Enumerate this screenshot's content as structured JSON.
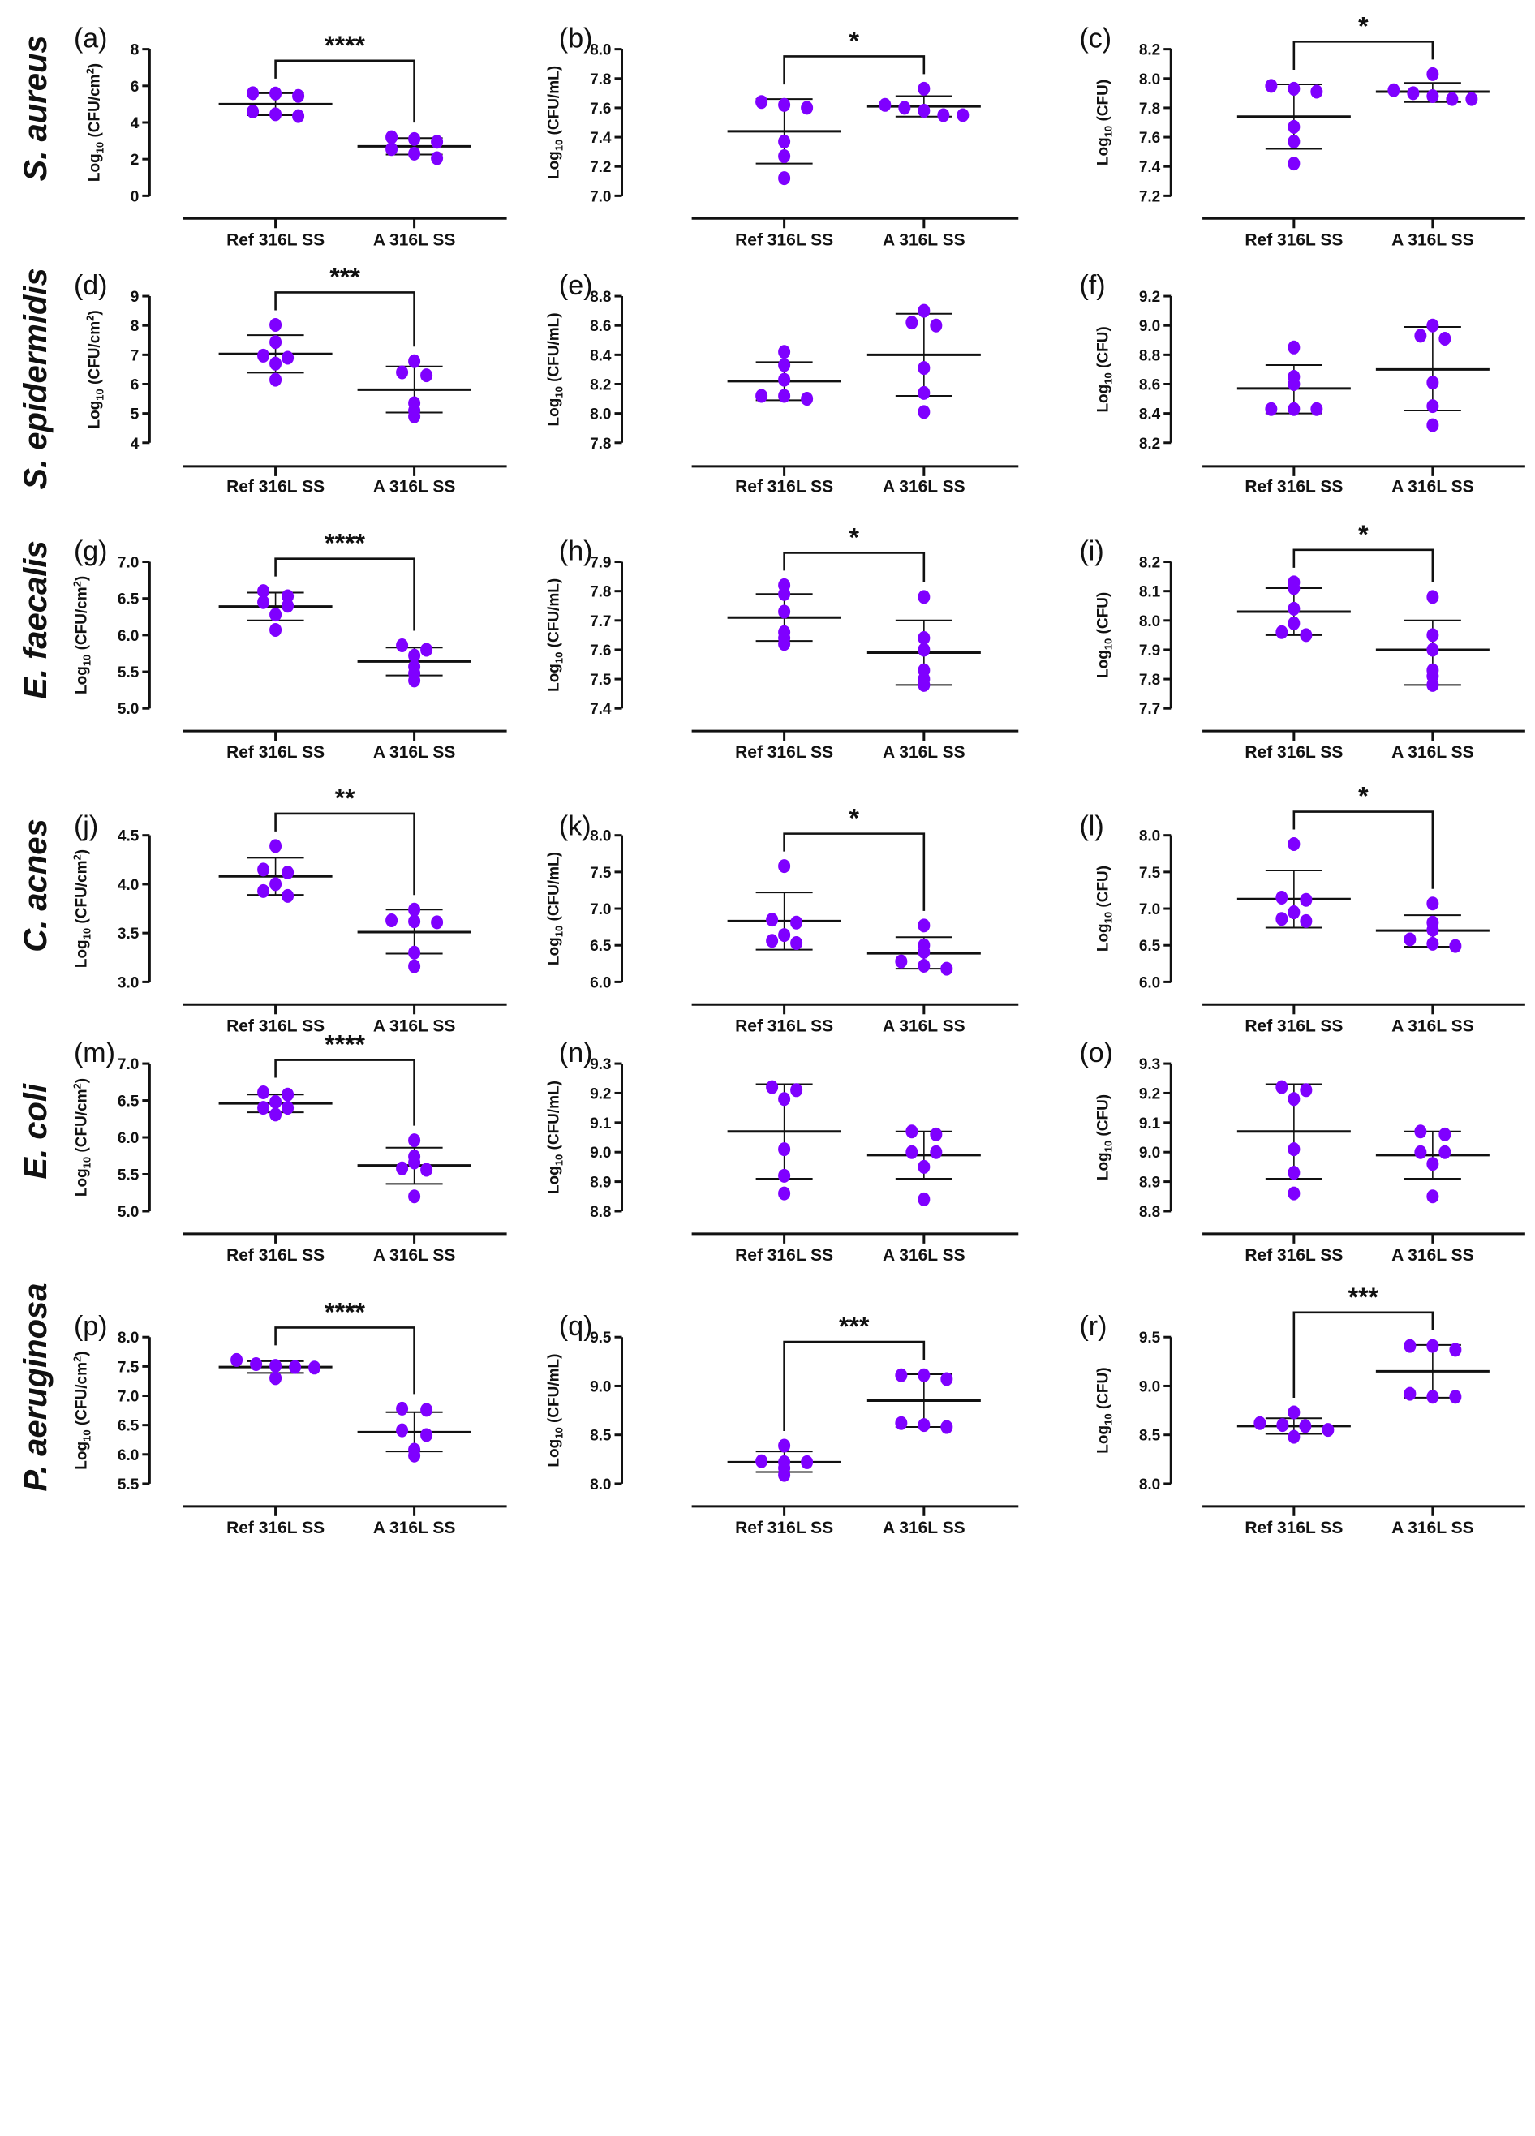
{
  "figure": {
    "dot_color": "#7f00ff",
    "line_color": "#111111",
    "categories": [
      "Ref 316L SS",
      "A 316L SS"
    ]
  },
  "row_labels": [
    "S. aureus",
    "S. epidermidis",
    "E. faecalis",
    "C. acnes",
    "E. coli",
    "P. aeruginosa"
  ],
  "chart_data": [
    {
      "panel": "(a)",
      "type": "scatter",
      "organism": "S. aureus",
      "ylabel": "Log10 (CFU/cm2)",
      "ylabel_main": "Log",
      "ylabel_sub": "10",
      "ylabel_rest": " (CFU/cm",
      "ylabel_sup": "2",
      "ylabel_end": ")",
      "ylim": [
        0,
        8
      ],
      "yticks": [
        0,
        2,
        4,
        6,
        8
      ],
      "tick_decimals": 0,
      "significance": "****",
      "categories": [
        "Ref 316L SS",
        "A 316L SS"
      ],
      "series": [
        {
          "name": "Ref 316L SS",
          "points": [
            5.6,
            5.45,
            5.58,
            4.35,
            4.6,
            4.45
          ],
          "mean": 5.0,
          "sd_low": 4.4,
          "sd_high": 5.6
        },
        {
          "name": "A 316L SS",
          "points": [
            3.1,
            3.2,
            2.95,
            2.55,
            2.05,
            2.3
          ],
          "mean": 2.7,
          "sd_low": 2.25,
          "sd_high": 3.15
        }
      ]
    },
    {
      "panel": "(b)",
      "type": "scatter",
      "organism": "S. aureus",
      "ylabel_main": "Log",
      "ylabel_sub": "10",
      "ylabel_rest": " (CFU/mL)",
      "ylabel_sup": "",
      "ylabel_end": "",
      "ylim": [
        7.0,
        8.0
      ],
      "yticks": [
        7.0,
        7.2,
        7.4,
        7.6,
        7.8,
        8.0
      ],
      "tick_decimals": 1,
      "significance": "*",
      "categories": [
        "Ref 316L SS",
        "A 316L SS"
      ],
      "series": [
        {
          "name": "Ref 316L SS",
          "points": [
            7.64,
            7.6,
            7.62,
            7.37,
            7.27,
            7.12
          ],
          "mean": 7.44,
          "sd_low": 7.22,
          "sd_high": 7.66
        },
        {
          "name": "A 316L SS",
          "points": [
            7.62,
            7.73,
            7.6,
            7.55,
            7.55,
            7.58
          ],
          "mean": 7.61,
          "sd_low": 7.54,
          "sd_high": 7.68
        }
      ]
    },
    {
      "panel": "(c)",
      "type": "scatter",
      "organism": "S. aureus",
      "ylabel_main": "Log",
      "ylabel_sub": "10",
      "ylabel_rest": " (CFU)",
      "ylabel_sup": "",
      "ylabel_end": "",
      "ylim": [
        7.2,
        8.2
      ],
      "yticks": [
        7.2,
        7.4,
        7.6,
        7.8,
        8.0,
        8.2
      ],
      "tick_decimals": 1,
      "significance": "*",
      "categories": [
        "Ref 316L SS",
        "A 316L SS"
      ],
      "series": [
        {
          "name": "Ref 316L SS",
          "points": [
            7.95,
            7.91,
            7.93,
            7.67,
            7.57,
            7.42
          ],
          "mean": 7.74,
          "sd_low": 7.52,
          "sd_high": 7.96
        },
        {
          "name": "A 316L SS",
          "points": [
            7.9,
            8.03,
            7.92,
            7.86,
            7.86,
            7.88
          ],
          "mean": 7.91,
          "sd_low": 7.84,
          "sd_high": 7.97
        }
      ]
    },
    {
      "panel": "(d)",
      "type": "scatter",
      "organism": "S. epidermidis",
      "ylabel_main": "Log",
      "ylabel_sub": "10",
      "ylabel_rest": " (CFU/cm",
      "ylabel_sup": "2",
      "ylabel_end": ")",
      "ylim": [
        4,
        9
      ],
      "yticks": [
        4,
        5,
        6,
        7,
        8,
        9
      ],
      "tick_decimals": 0,
      "significance": "***",
      "categories": [
        "Ref 316L SS",
        "A 316L SS"
      ],
      "series": [
        {
          "name": "Ref 316L SS",
          "points": [
            8.02,
            7.43,
            6.9,
            6.97,
            6.7,
            6.15
          ],
          "mean": 7.03,
          "sd_low": 6.39,
          "sd_high": 7.67
        },
        {
          "name": "A 316L SS",
          "points": [
            6.78,
            6.4,
            6.3,
            5.35,
            5.1,
            4.9
          ],
          "mean": 5.81,
          "sd_low": 5.03,
          "sd_high": 6.6
        }
      ]
    },
    {
      "panel": "(e)",
      "type": "scatter",
      "organism": "S. epidermidis",
      "ylabel_main": "Log",
      "ylabel_sub": "10",
      "ylabel_rest": " (CFU/mL)",
      "ylabel_sup": "",
      "ylabel_end": "",
      "ylim": [
        7.8,
        8.8
      ],
      "yticks": [
        7.8,
        8.0,
        8.2,
        8.4,
        8.6,
        8.8
      ],
      "tick_decimals": 1,
      "significance": "",
      "categories": [
        "Ref 316L SS",
        "A 316L SS"
      ],
      "series": [
        {
          "name": "Ref 316L SS",
          "points": [
            8.42,
            8.33,
            8.23,
            8.12,
            8.1,
            8.12
          ],
          "mean": 8.22,
          "sd_low": 8.09,
          "sd_high": 8.35
        },
        {
          "name": "A 316L SS",
          "points": [
            8.7,
            8.62,
            8.6,
            8.31,
            8.14,
            8.01
          ],
          "mean": 8.4,
          "sd_low": 8.12,
          "sd_high": 8.68
        }
      ]
    },
    {
      "panel": "(f)",
      "type": "scatter",
      "organism": "S. epidermidis",
      "ylabel_main": "Log",
      "ylabel_sub": "10",
      "ylabel_rest": " (CFU)",
      "ylabel_sup": "",
      "ylabel_end": "",
      "ylim": [
        8.2,
        9.2
      ],
      "yticks": [
        8.2,
        8.4,
        8.6,
        8.8,
        9.0,
        9.2
      ],
      "tick_decimals": 1,
      "significance": "",
      "categories": [
        "Ref 316L SS",
        "A 316L SS"
      ],
      "series": [
        {
          "name": "Ref 316L SS",
          "points": [
            8.85,
            8.65,
            8.6,
            8.43,
            8.43,
            8.43
          ],
          "mean": 8.57,
          "sd_low": 8.4,
          "sd_high": 8.73
        },
        {
          "name": "A 316L SS",
          "points": [
            9.0,
            8.93,
            8.91,
            8.61,
            8.45,
            8.32
          ],
          "mean": 8.7,
          "sd_low": 8.42,
          "sd_high": 8.99
        }
      ]
    },
    {
      "panel": "(g)",
      "type": "scatter",
      "organism": "E. faecalis",
      "ylabel_main": "Log",
      "ylabel_sub": "10",
      "ylabel_rest": " (CFU/cm",
      "ylabel_sup": "2",
      "ylabel_end": ")",
      "ylim": [
        5.0,
        7.0
      ],
      "yticks": [
        5.0,
        5.5,
        6.0,
        6.5,
        7.0
      ],
      "tick_decimals": 1,
      "significance": "****",
      "categories": [
        "Ref 316L SS",
        "A 316L SS"
      ],
      "series": [
        {
          "name": "Ref 316L SS",
          "points": [
            6.6,
            6.53,
            6.45,
            6.4,
            6.28,
            6.07
          ],
          "mean": 6.39,
          "sd_low": 6.2,
          "sd_high": 6.58
        },
        {
          "name": "A 316L SS",
          "points": [
            5.86,
            5.8,
            5.72,
            5.57,
            5.48,
            5.38
          ],
          "mean": 5.64,
          "sd_low": 5.45,
          "sd_high": 5.83
        }
      ]
    },
    {
      "panel": "(h)",
      "type": "scatter",
      "organism": "E. faecalis",
      "ylabel_main": "Log",
      "ylabel_sub": "10",
      "ylabel_rest": " (CFU/mL)",
      "ylabel_sup": "",
      "ylabel_end": "",
      "ylim": [
        7.4,
        7.9
      ],
      "yticks": [
        7.4,
        7.5,
        7.6,
        7.7,
        7.8,
        7.9
      ],
      "tick_decimals": 1,
      "significance": "*",
      "categories": [
        "Ref 316L SS",
        "A 316L SS"
      ],
      "series": [
        {
          "name": "Ref 316L SS",
          "points": [
            7.82,
            7.79,
            7.73,
            7.66,
            7.64,
            7.62
          ],
          "mean": 7.71,
          "sd_low": 7.63,
          "sd_high": 7.79
        },
        {
          "name": "A 316L SS",
          "points": [
            7.78,
            7.64,
            7.6,
            7.53,
            7.5,
            7.48
          ],
          "mean": 7.59,
          "sd_low": 7.48,
          "sd_high": 7.7
        }
      ]
    },
    {
      "panel": "(i)",
      "type": "scatter",
      "organism": "E. faecalis",
      "ylabel_main": "Log",
      "ylabel_sub": "10",
      "ylabel_rest": " (CFU)",
      "ylabel_sup": "",
      "ylabel_end": "",
      "ylim": [
        7.7,
        8.2
      ],
      "yticks": [
        7.7,
        7.8,
        7.9,
        8.0,
        8.1,
        8.2
      ],
      "tick_decimals": 1,
      "significance": "*",
      "categories": [
        "Ref 316L SS",
        "A 316L SS"
      ],
      "series": [
        {
          "name": "Ref 316L SS",
          "points": [
            8.13,
            8.11,
            8.04,
            7.99,
            7.96,
            7.95
          ],
          "mean": 8.03,
          "sd_low": 7.95,
          "sd_high": 8.11
        },
        {
          "name": "A 316L SS",
          "points": [
            8.08,
            7.95,
            7.9,
            7.83,
            7.81,
            7.78
          ],
          "mean": 7.9,
          "sd_low": 7.78,
          "sd_high": 8.0
        }
      ]
    },
    {
      "panel": "(j)",
      "type": "scatter",
      "organism": "C. acnes",
      "ylabel_main": "Log",
      "ylabel_sub": "10",
      "ylabel_rest": " (CFU/cm",
      "ylabel_sup": "2",
      "ylabel_end": ")",
      "ylim": [
        3.0,
        4.5
      ],
      "yticks": [
        3.0,
        3.5,
        4.0,
        4.5
      ],
      "tick_decimals": 1,
      "significance": "**",
      "categories": [
        "Ref 316L SS",
        "A 316L SS"
      ],
      "series": [
        {
          "name": "Ref 316L SS",
          "points": [
            4.39,
            4.15,
            4.12,
            4.0,
            3.93,
            3.88
          ],
          "mean": 4.08,
          "sd_low": 3.89,
          "sd_high": 4.27
        },
        {
          "name": "A 316L SS",
          "points": [
            3.74,
            3.62,
            3.63,
            3.61,
            3.3,
            3.16
          ],
          "mean": 3.51,
          "sd_low": 3.29,
          "sd_high": 3.74
        }
      ]
    },
    {
      "panel": "(k)",
      "type": "scatter",
      "organism": "C. acnes",
      "ylabel_main": "Log",
      "ylabel_sub": "10",
      "ylabel_rest": " (CFU/mL)",
      "ylabel_sup": "",
      "ylabel_end": "",
      "ylim": [
        6.0,
        8.0
      ],
      "yticks": [
        6.0,
        6.5,
        7.0,
        7.5,
        8.0
      ],
      "tick_decimals": 1,
      "significance": "*",
      "categories": [
        "Ref 316L SS",
        "A 316L SS"
      ],
      "series": [
        {
          "name": "Ref 316L SS",
          "points": [
            7.58,
            6.85,
            6.81,
            6.64,
            6.56,
            6.53
          ],
          "mean": 6.83,
          "sd_low": 6.44,
          "sd_high": 7.22
        },
        {
          "name": "A 316L SS",
          "points": [
            6.77,
            6.5,
            6.41,
            6.28,
            6.22,
            6.18
          ],
          "mean": 6.39,
          "sd_low": 6.18,
          "sd_high": 6.61
        }
      ]
    },
    {
      "panel": "(l)",
      "type": "scatter",
      "organism": "C. acnes",
      "ylabel_main": "Log",
      "ylabel_sub": "10",
      "ylabel_rest": " (CFU)",
      "ylabel_sup": "",
      "ylabel_end": "",
      "ylim": [
        6.0,
        8.0
      ],
      "yticks": [
        6.0,
        6.5,
        7.0,
        7.5,
        8.0
      ],
      "tick_decimals": 1,
      "significance": "*",
      "categories": [
        "Ref 316L SS",
        "A 316L SS"
      ],
      "series": [
        {
          "name": "Ref 316L SS",
          "points": [
            7.88,
            7.15,
            7.12,
            6.95,
            6.86,
            6.83
          ],
          "mean": 7.13,
          "sd_low": 6.74,
          "sd_high": 7.52
        },
        {
          "name": "A 316L SS",
          "points": [
            7.07,
            6.81,
            6.71,
            6.58,
            6.52,
            6.49
          ],
          "mean": 6.7,
          "sd_low": 6.48,
          "sd_high": 6.91
        }
      ]
    },
    {
      "panel": "(m)",
      "type": "scatter",
      "organism": "E. coli",
      "ylabel_main": "Log",
      "ylabel_sub": "10",
      "ylabel_rest": " (CFU/cm",
      "ylabel_sup": "2",
      "ylabel_end": ")",
      "ylim": [
        5.0,
        7.0
      ],
      "yticks": [
        5.0,
        5.5,
        6.0,
        6.5,
        7.0
      ],
      "tick_decimals": 1,
      "significance": "****",
      "categories": [
        "Ref 316L SS",
        "A 316L SS"
      ],
      "series": [
        {
          "name": "Ref 316L SS",
          "points": [
            6.61,
            6.58,
            6.48,
            6.4,
            6.4,
            6.31
          ],
          "mean": 6.46,
          "sd_low": 6.34,
          "sd_high": 6.58
        },
        {
          "name": "A 316L SS",
          "points": [
            5.96,
            5.74,
            5.66,
            5.58,
            5.56,
            5.2
          ],
          "mean": 5.62,
          "sd_low": 5.37,
          "sd_high": 5.86
        }
      ]
    },
    {
      "panel": "(n)",
      "type": "scatter",
      "organism": "E. coli",
      "ylabel_main": "Log",
      "ylabel_sub": "10",
      "ylabel_rest": " (CFU/mL)",
      "ylabel_sup": "",
      "ylabel_end": "",
      "ylim": [
        8.8,
        9.3
      ],
      "yticks": [
        8.8,
        8.9,
        9.0,
        9.1,
        9.2,
        9.3
      ],
      "tick_decimals": 1,
      "significance": "",
      "categories": [
        "Ref 316L SS",
        "A 316L SS"
      ],
      "series": [
        {
          "name": "Ref 316L SS",
          "points": [
            9.22,
            9.21,
            9.18,
            9.01,
            8.92,
            8.86
          ],
          "mean": 9.07,
          "sd_low": 8.91,
          "sd_high": 9.23
        },
        {
          "name": "A 316L SS",
          "points": [
            9.07,
            9.06,
            9.0,
            9.0,
            8.95,
            8.84
          ],
          "mean": 8.99,
          "sd_low": 8.91,
          "sd_high": 9.07
        }
      ]
    },
    {
      "panel": "(o)",
      "type": "scatter",
      "organism": "E. coli",
      "ylabel_main": "Log",
      "ylabel_sub": "10",
      "ylabel_rest": " (CFU)",
      "ylabel_sup": "",
      "ylabel_end": "",
      "ylim": [
        8.8,
        9.3
      ],
      "yticks": [
        8.8,
        8.9,
        9.0,
        9.1,
        9.2,
        9.3
      ],
      "tick_decimals": 1,
      "significance": "",
      "categories": [
        "Ref 316L SS",
        "A 316L SS"
      ],
      "series": [
        {
          "name": "Ref 316L SS",
          "points": [
            9.22,
            9.21,
            9.18,
            9.01,
            8.93,
            8.86
          ],
          "mean": 9.07,
          "sd_low": 8.91,
          "sd_high": 9.23
        },
        {
          "name": "A 316L SS",
          "points": [
            9.07,
            9.06,
            9.0,
            9.0,
            8.96,
            8.85
          ],
          "mean": 8.99,
          "sd_low": 8.91,
          "sd_high": 9.07
        }
      ]
    },
    {
      "panel": "(p)",
      "type": "scatter",
      "organism": "P. aeruginosa",
      "ylabel_main": "Log",
      "ylabel_sub": "10",
      "ylabel_rest": " (CFU/cm",
      "ylabel_sup": "2",
      "ylabel_end": ")",
      "ylim": [
        5.5,
        8.0
      ],
      "yticks": [
        5.5,
        6.0,
        6.5,
        7.0,
        7.5,
        8.0
      ],
      "tick_decimals": 1,
      "significance": "****",
      "categories": [
        "Ref 316L SS",
        "A 316L SS"
      ],
      "series": [
        {
          "name": "Ref 316L SS",
          "points": [
            7.54,
            7.61,
            7.49,
            7.51,
            7.48,
            7.3
          ],
          "mean": 7.49,
          "sd_low": 7.39,
          "sd_high": 7.59
        },
        {
          "name": "A 316L SS",
          "points": [
            6.76,
            6.78,
            6.41,
            6.33,
            6.08,
            5.98
          ],
          "mean": 6.38,
          "sd_low": 6.05,
          "sd_high": 6.72
        }
      ]
    },
    {
      "panel": "(q)",
      "type": "scatter",
      "organism": "P. aeruginosa",
      "ylabel_main": "Log",
      "ylabel_sub": "10",
      "ylabel_rest": " (CFU/mL)",
      "ylabel_sup": "",
      "ylabel_end": "",
      "ylim": [
        8.0,
        9.5
      ],
      "yticks": [
        8.0,
        8.5,
        9.0,
        9.5
      ],
      "tick_decimals": 1,
      "significance": "***",
      "categories": [
        "Ref 316L SS",
        "A 316L SS"
      ],
      "series": [
        {
          "name": "Ref 316L SS",
          "points": [
            8.39,
            8.22,
            8.23,
            8.22,
            8.16,
            8.09
          ],
          "mean": 8.22,
          "sd_low": 8.12,
          "sd_high": 8.33
        },
        {
          "name": "A 316L SS",
          "points": [
            9.11,
            9.11,
            9.07,
            8.62,
            8.6,
            8.58
          ],
          "mean": 8.85,
          "sd_low": 8.58,
          "sd_high": 9.12
        }
      ]
    },
    {
      "panel": "(r)",
      "type": "scatter",
      "organism": "P. aeruginosa",
      "ylabel_main": "Log",
      "ylabel_sub": "10",
      "ylabel_rest": " (CFU)",
      "ylabel_sup": "",
      "ylabel_end": "",
      "ylim": [
        8.0,
        9.5
      ],
      "yticks": [
        8.0,
        8.5,
        9.0,
        9.5
      ],
      "tick_decimals": 1,
      "significance": "***",
      "categories": [
        "Ref 316L SS",
        "A 316L SS"
      ],
      "series": [
        {
          "name": "Ref 316L SS",
          "points": [
            8.73,
            8.62,
            8.6,
            8.59,
            8.55,
            8.48
          ],
          "mean": 8.59,
          "sd_low": 8.51,
          "sd_high": 8.67
        },
        {
          "name": "A 316L SS",
          "points": [
            9.41,
            9.41,
            9.37,
            8.92,
            8.89,
            8.89
          ],
          "mean": 9.15,
          "sd_low": 8.88,
          "sd_high": 9.42
        }
      ]
    }
  ]
}
